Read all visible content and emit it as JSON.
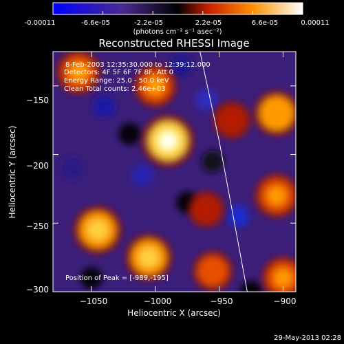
{
  "colorbar": {
    "tick_labels": [
      "-0.00011",
      "-6.6e-05",
      "-2.2e-05",
      "2.2e-05",
      "6.6e-05",
      "0.00011"
    ],
    "units_label": "(photons cm⁻² s⁻¹ asec⁻²)",
    "range": [
      -0.00011,
      0.00011
    ]
  },
  "chart_data": {
    "type": "heatmap",
    "title": "Reconstructed RHESSI Image",
    "xlabel": "Heliocentric X (arcsec)",
    "ylabel": "Heliocentric Y (arcsec)",
    "xlim": [
      -1080,
      -890
    ],
    "ylim": [
      -300,
      -125
    ],
    "xticks": [
      -1050,
      -1000,
      -950,
      -900
    ],
    "xtick_labels": [
      "−1050",
      "−1000",
      "−950",
      "−900"
    ],
    "yticks": [
      -150,
      -200,
      -250,
      -300
    ],
    "ytick_labels": [
      "−150",
      "−200",
      "−250",
      "−300"
    ],
    "annotations": [
      "8-Feb-2003 12:35:30.000 to 12:39:12.000",
      "Detectors: 4F 5F 6F 7F 8F, Att 0",
      "Energy Range: 25.0 - 50.0 keV",
      "Clean    Total counts: 2.46e+03"
    ],
    "peak_label": "Position of Peak = [-989,-195]",
    "peak": [
      -989,
      -195
    ],
    "limb_curve": [
      [
        -965,
        -125
      ],
      [
        -950,
        -190
      ],
      [
        -940,
        -240
      ],
      [
        -928,
        -300
      ]
    ],
    "sources": [
      {
        "x": -990,
        "y": -190,
        "intensity": 1.0
      },
      {
        "x": -1045,
        "y": -255,
        "intensity": 0.85
      },
      {
        "x": -1005,
        "y": -275,
        "intensity": 0.8
      },
      {
        "x": -1060,
        "y": -140,
        "intensity": 0.7
      },
      {
        "x": -1000,
        "y": -150,
        "intensity": 0.65
      },
      {
        "x": -905,
        "y": -170,
        "intensity": 0.75
      },
      {
        "x": -905,
        "y": -230,
        "intensity": 0.7
      },
      {
        "x": -900,
        "y": -290,
        "intensity": 0.65
      },
      {
        "x": -955,
        "y": -285,
        "intensity": 0.55
      },
      {
        "x": -940,
        "y": -175,
        "intensity": 0.45
      },
      {
        "x": -960,
        "y": -240,
        "intensity": 0.4
      }
    ],
    "colors": [
      "#0000ff",
      "#4b2a8f",
      "#000000",
      "#d22a00",
      "#ff9a00",
      "#ffff66",
      "#ffffff"
    ]
  },
  "footer": {
    "timestamp": "29-May-2013 02:28"
  }
}
